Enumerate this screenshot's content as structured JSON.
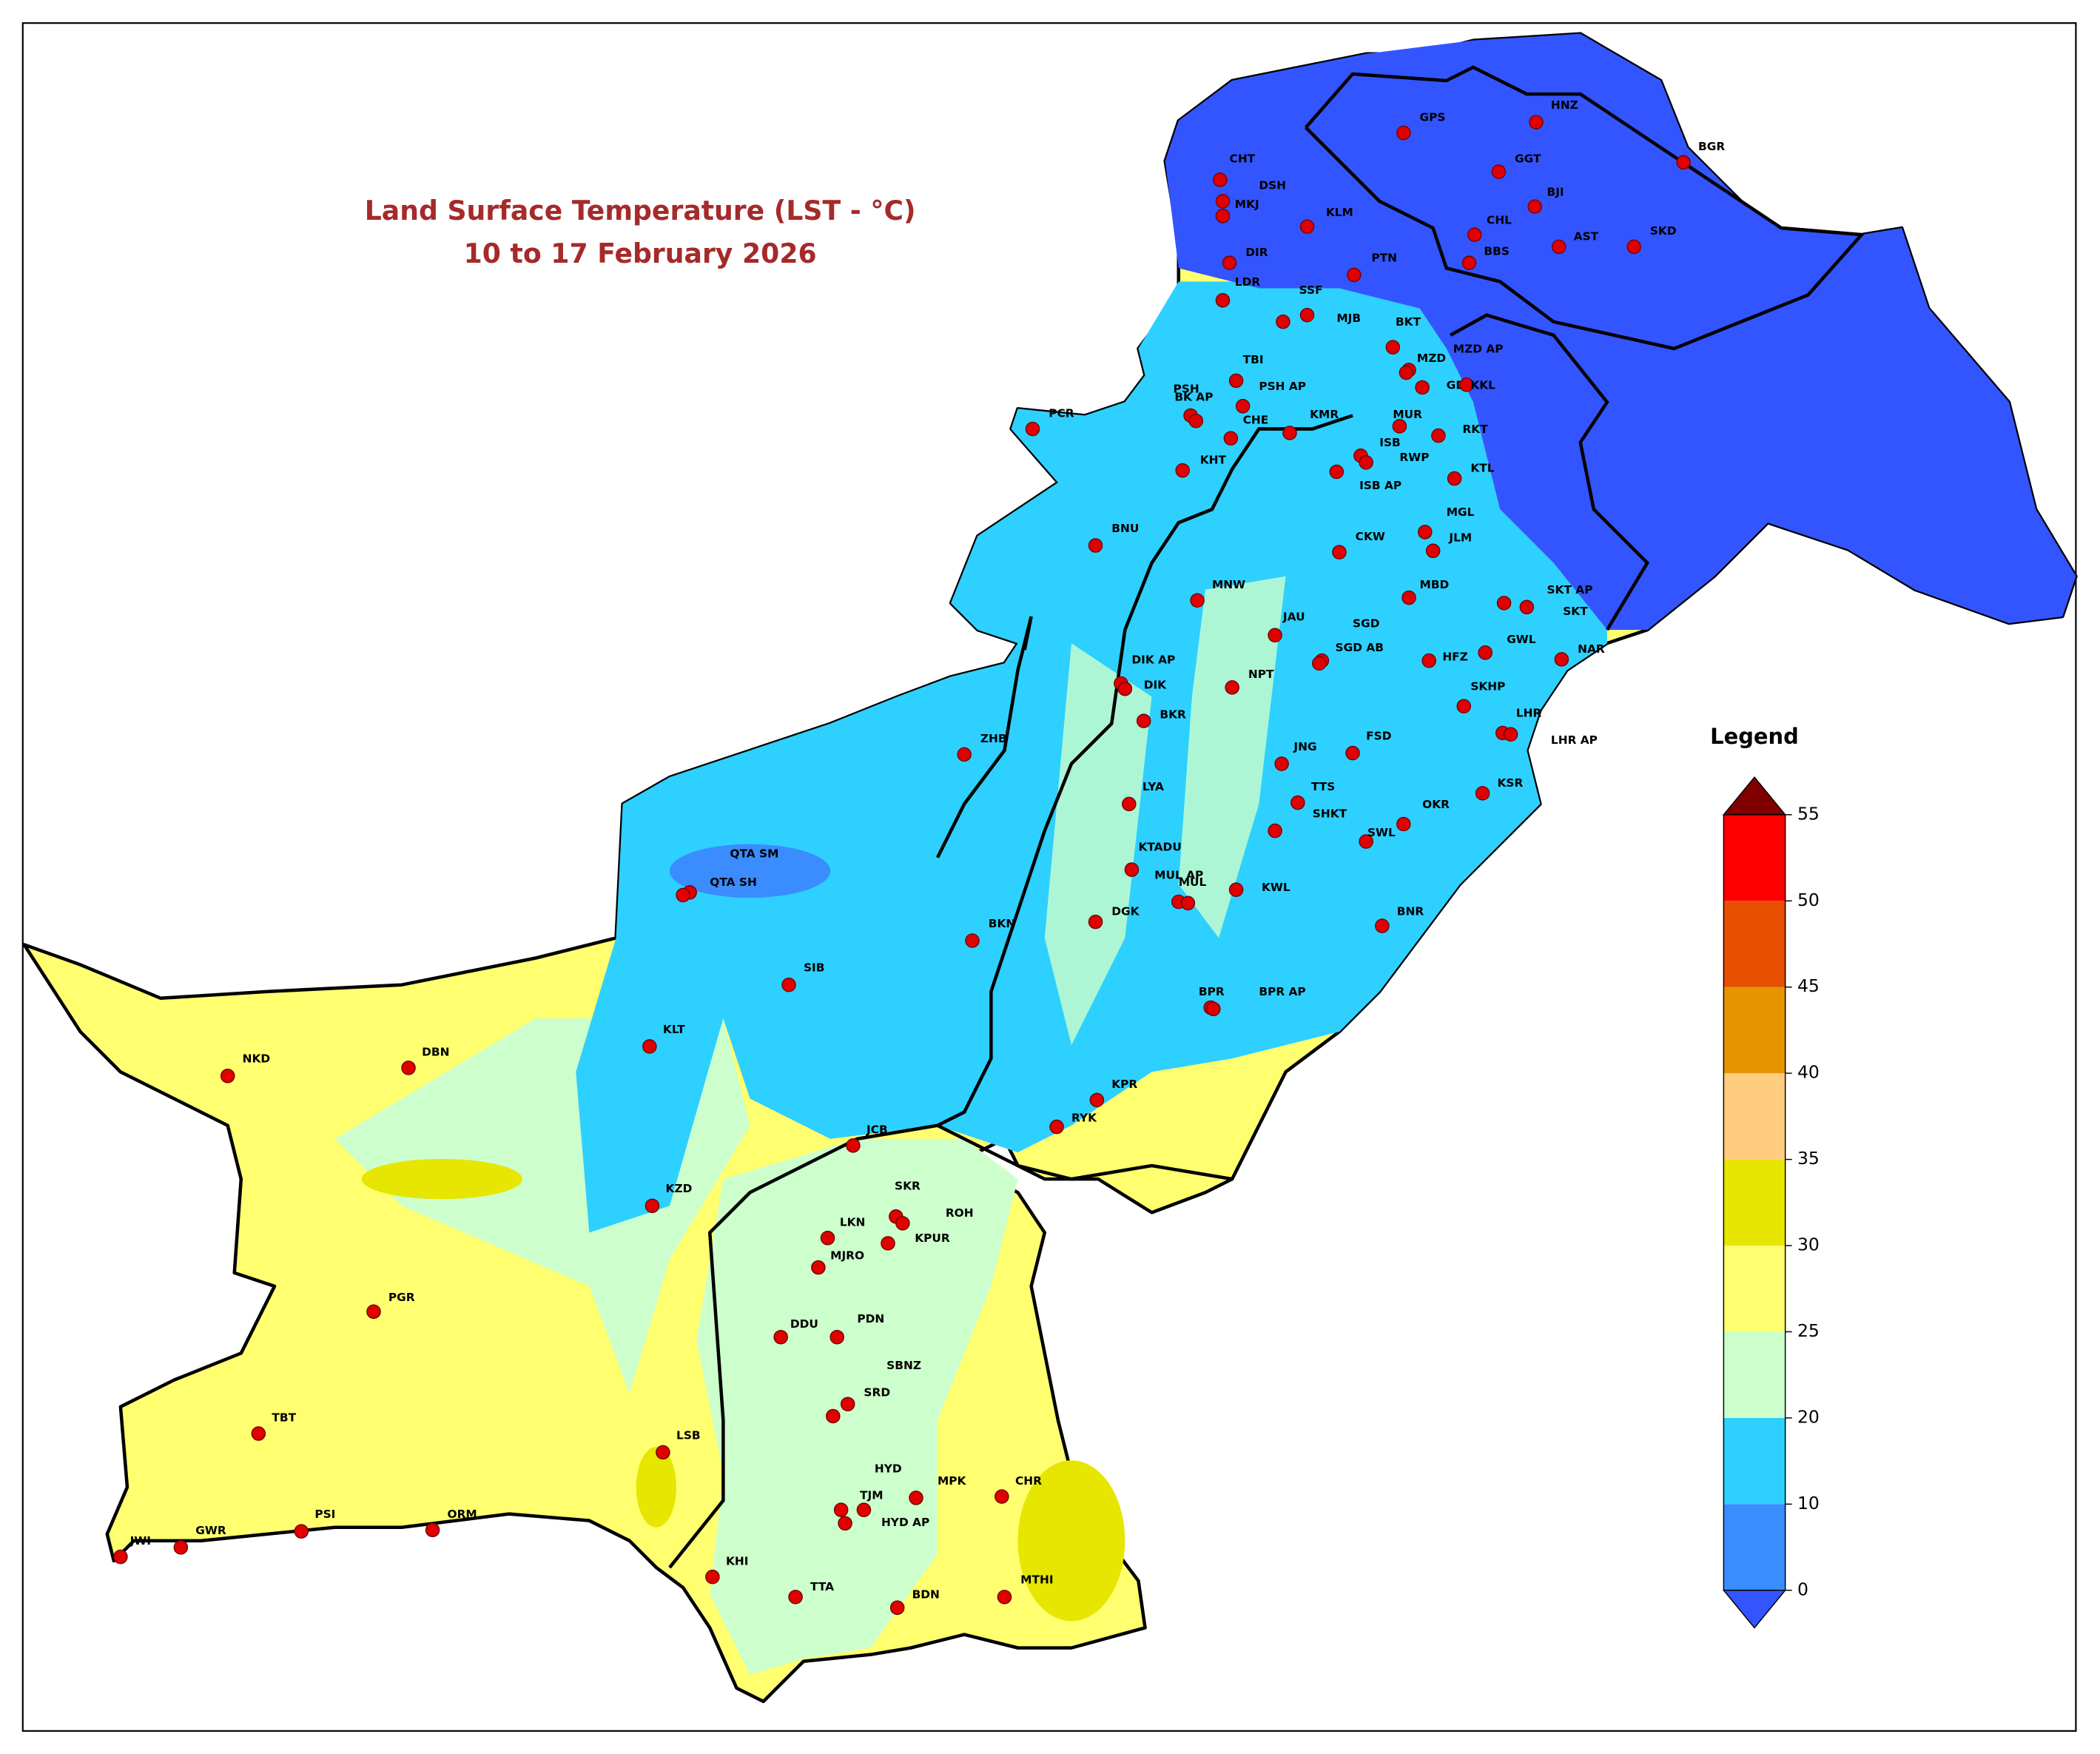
{
  "header": {
    "title": "Land Surface Temperature (LST - °C)",
    "subtitle": "10 to 17 February 2026"
  },
  "legend": {
    "title": "Legend",
    "ticks": [
      0,
      10,
      20,
      25,
      30,
      35,
      40,
      45,
      50,
      55
    ],
    "colors": [
      "#3a8cff",
      "#2ed0ff",
      "#ccffcc",
      "#ffff70",
      "#e6e600",
      "#ffcc80",
      "#e69500",
      "#e65000",
      "#ff0000"
    ],
    "under_color": "#3355ff",
    "over_color": "#800000"
  },
  "stations": [
    "GPS",
    "HNZ",
    "BGR",
    "CHT",
    "DSH",
    "MKJ",
    "KLM",
    "GGT",
    "BJI",
    "CHL",
    "AST",
    "SKD",
    "BBS",
    "DIR",
    "PTN",
    "LDR",
    "SSF",
    "MJB",
    "BKT",
    "MZD",
    "MZD AP",
    "TBI",
    "PSH",
    "PSH AP",
    "BK AP",
    "GDI",
    "KKL",
    "CHE",
    "KMR",
    "MUR",
    "ISB",
    "RWP",
    "ISB AP",
    "RKT",
    "KTL",
    "PCR",
    "KHT",
    "BNU",
    "MGL",
    "JLM",
    "CKW",
    "MBD",
    "SKT AP",
    "SKT",
    "MNW",
    "JAU",
    "SGD",
    "SGD AB",
    "GWL",
    "HFZ",
    "NAR",
    "DIK AP",
    "DIK",
    "NPT",
    "SKHP",
    "BKR",
    "LHR",
    "LHR AP",
    "FSD",
    "JNG",
    "ZHB",
    "TTS",
    "LYA",
    "KSR",
    "OKR",
    "SHKT",
    "SWL",
    "QTA SM",
    "QTA SH",
    "KTADU",
    "MUL AP",
    "MUL",
    "KWL",
    "DGK",
    "BNR",
    "BKN",
    "SIB",
    "BPR",
    "BPR AP",
    "KLT",
    "NKD",
    "DBN",
    "KPR",
    "RYK",
    "JCB",
    "SKR",
    "KZD",
    "LKN",
    "ROH",
    "KPUR",
    "MJRO",
    "PGR",
    "DDU",
    "PDN",
    "SBNZ",
    "SRD",
    "TBT",
    "LSB",
    "HYD",
    "MPK",
    "CHR",
    "TJM",
    "HYD AP",
    "JWI",
    "GWR",
    "PSI",
    "ORM",
    "KHI",
    "TTA",
    "BDN",
    "MTHI"
  ]
}
